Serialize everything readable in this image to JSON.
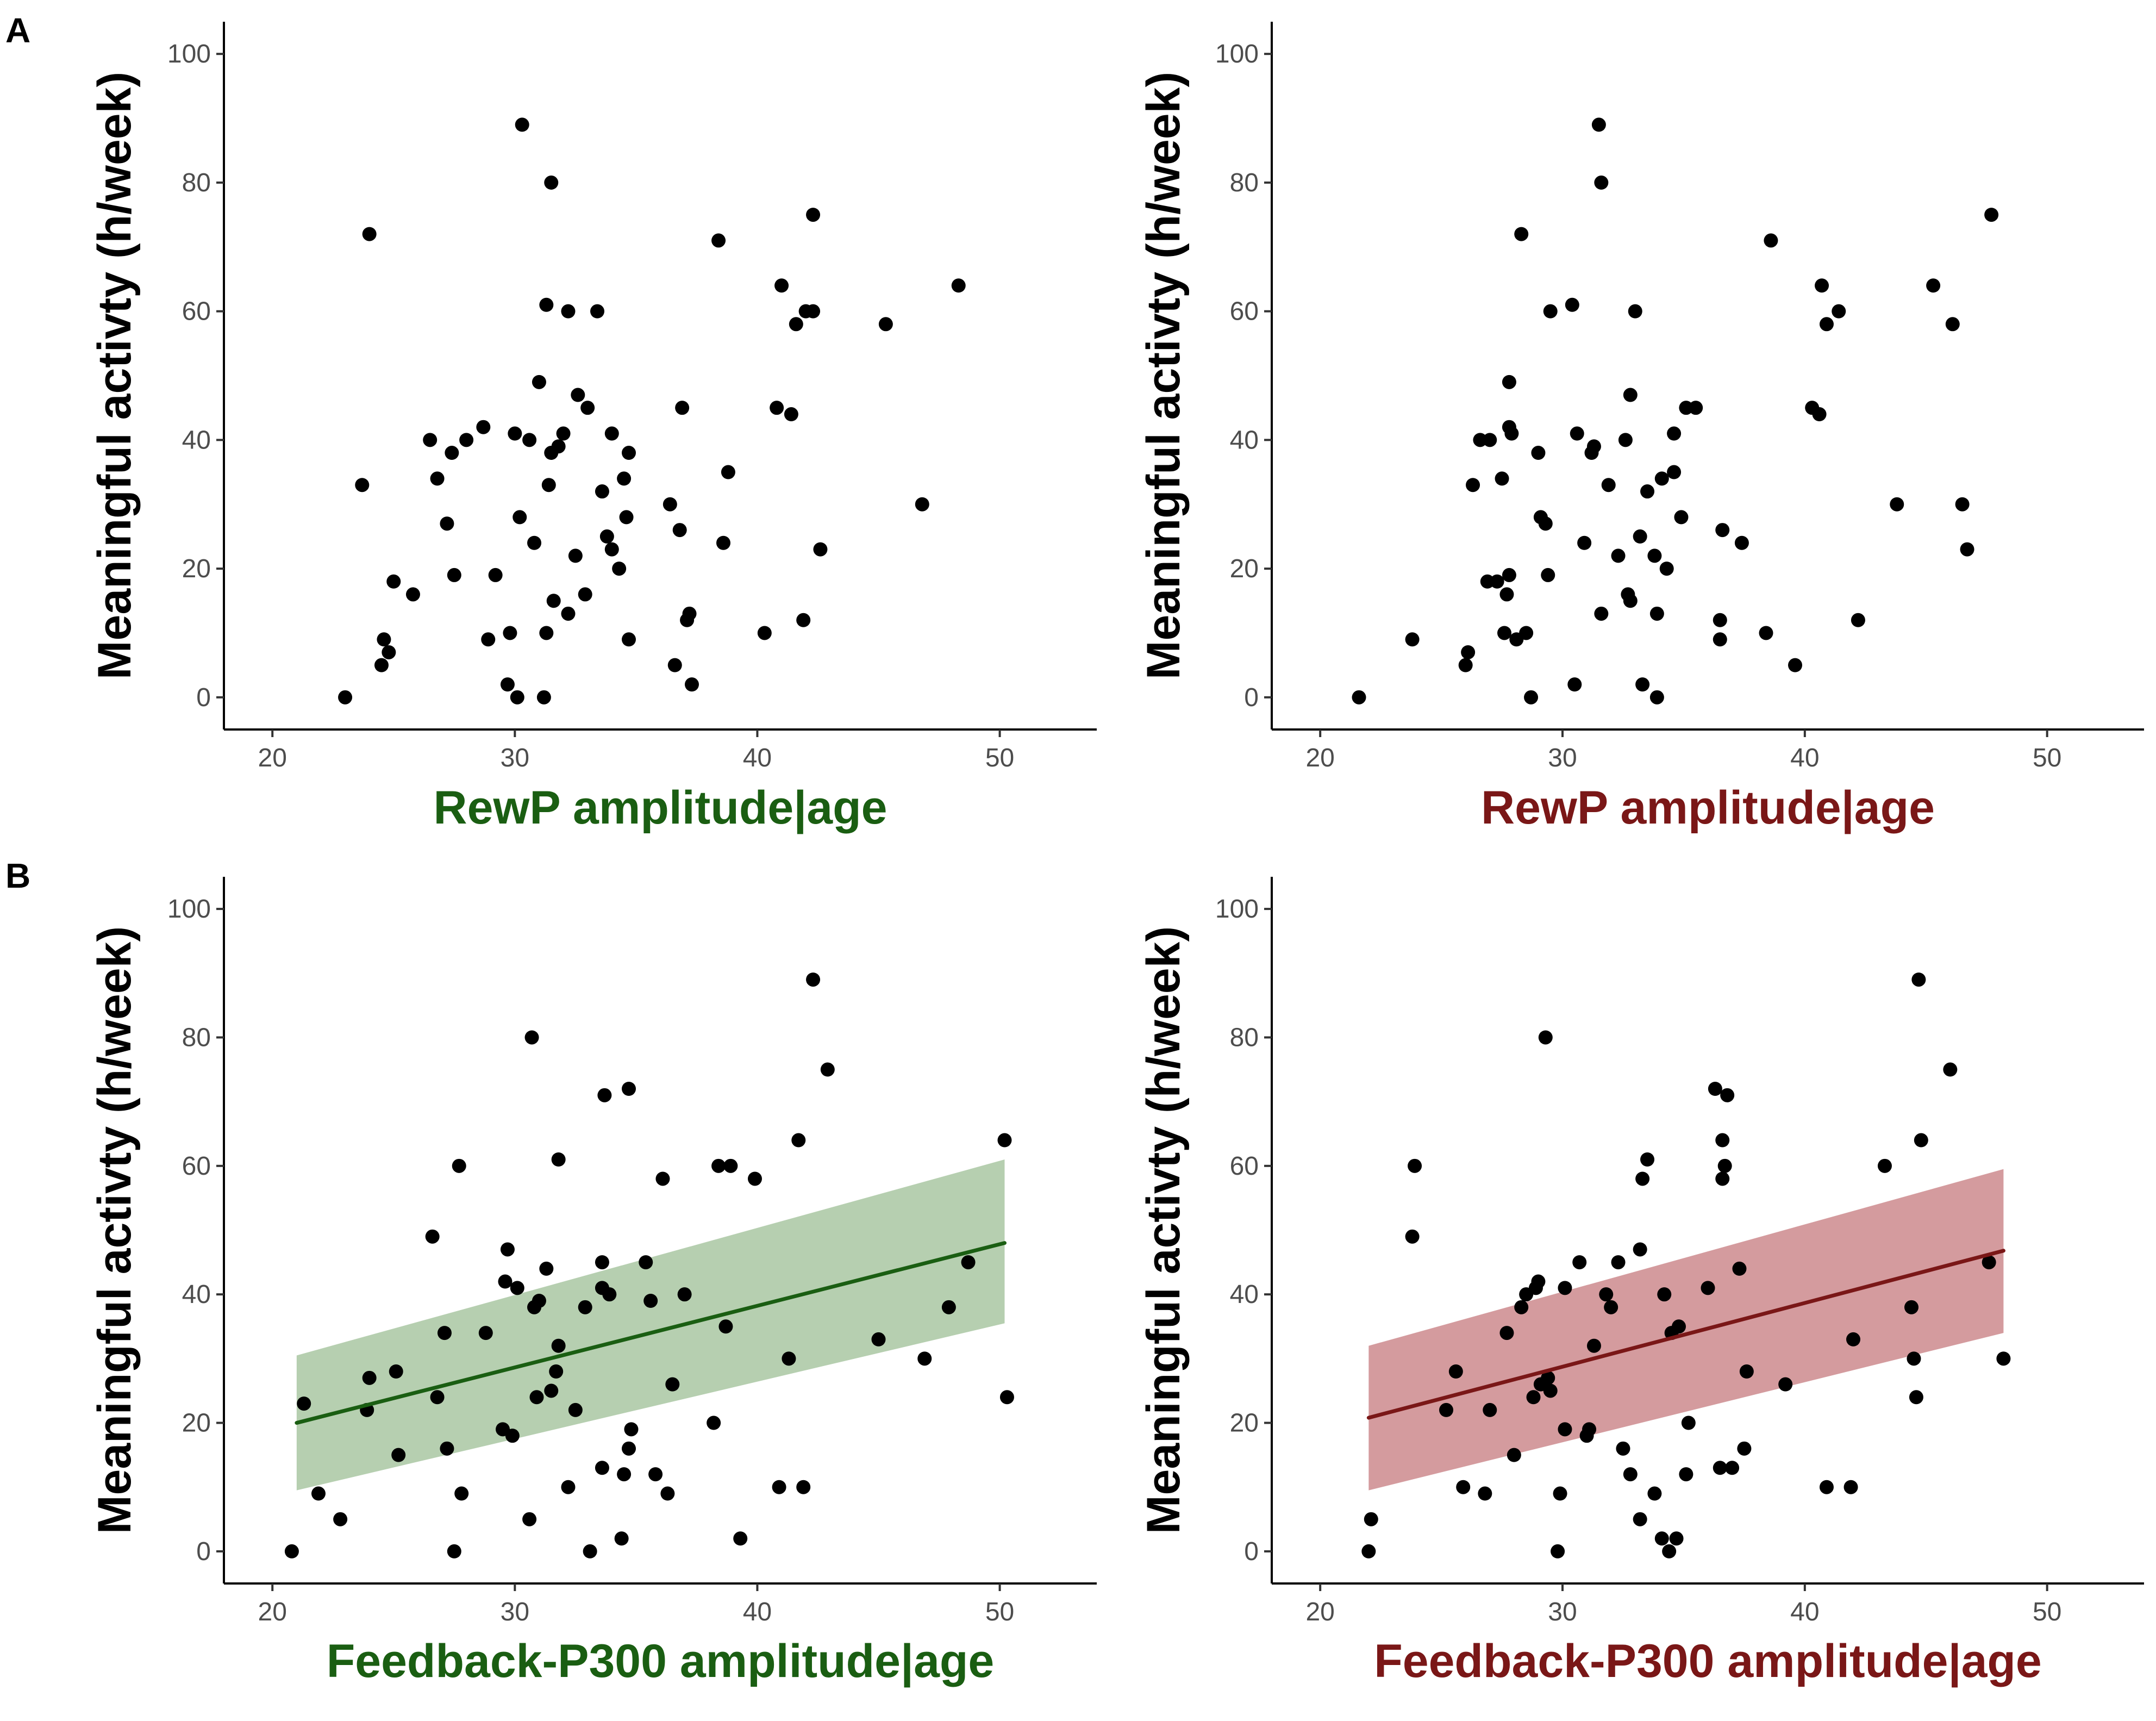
{
  "panel_labels": [
    "A",
    "B"
  ],
  "colors": {
    "green": "#1a5e12",
    "red": "#7a1717",
    "green_band": "#9dbf95",
    "red_band": "#c57a7e",
    "point": "#000000"
  },
  "chart_data": [
    {
      "type": "scatter",
      "panel": "A",
      "position": "top-left",
      "color": "green",
      "xlabel": "RewP amplitude|age",
      "ylabel": "Meaningful activty (h/week)",
      "xlim": [
        18,
        54
      ],
      "ylim": [
        -5,
        105
      ],
      "xticks": [
        20,
        30,
        40,
        50
      ],
      "yticks": [
        0,
        20,
        40,
        60,
        80,
        100
      ],
      "fit": null,
      "points": [
        [
          23,
          0
        ],
        [
          23.7,
          33
        ],
        [
          24,
          72
        ],
        [
          24.5,
          5
        ],
        [
          24.6,
          9
        ],
        [
          24.8,
          7
        ],
        [
          25,
          18
        ],
        [
          25.8,
          16
        ],
        [
          26.5,
          40
        ],
        [
          26.8,
          34
        ],
        [
          27.2,
          27
        ],
        [
          27.4,
          38
        ],
        [
          27.5,
          19
        ],
        [
          28,
          40
        ],
        [
          28.7,
          42
        ],
        [
          28.9,
          9
        ],
        [
          29.2,
          19
        ],
        [
          29.7,
          2
        ],
        [
          29.8,
          10
        ],
        [
          30,
          41
        ],
        [
          30.1,
          0
        ],
        [
          30.2,
          28
        ],
        [
          30.3,
          89
        ],
        [
          30.6,
          40
        ],
        [
          30.8,
          24
        ],
        [
          31,
          49
        ],
        [
          31.2,
          0
        ],
        [
          31.3,
          10
        ],
        [
          31.3,
          61
        ],
        [
          31.4,
          33
        ],
        [
          31.5,
          38
        ],
        [
          31.5,
          80
        ],
        [
          31.6,
          15
        ],
        [
          31.8,
          39
        ],
        [
          32,
          41
        ],
        [
          32.2,
          13
        ],
        [
          32.2,
          60
        ],
        [
          32.5,
          22
        ],
        [
          32.6,
          47
        ],
        [
          32.9,
          16
        ],
        [
          33,
          45
        ],
        [
          33.4,
          60
        ],
        [
          33.6,
          32
        ],
        [
          33.8,
          25
        ],
        [
          34,
          41
        ],
        [
          34,
          23
        ],
        [
          34.3,
          20
        ],
        [
          34.5,
          34
        ],
        [
          34.6,
          28
        ],
        [
          34.7,
          38
        ],
        [
          34.7,
          9
        ],
        [
          36.4,
          30
        ],
        [
          36.6,
          5
        ],
        [
          36.8,
          26
        ],
        [
          36.9,
          45
        ],
        [
          37.1,
          12
        ],
        [
          37.2,
          13
        ],
        [
          37.3,
          2
        ],
        [
          38.4,
          71
        ],
        [
          38.6,
          24
        ],
        [
          38.8,
          35
        ],
        [
          40.3,
          10
        ],
        [
          40.8,
          45
        ],
        [
          41,
          64
        ],
        [
          41.4,
          44
        ],
        [
          41.6,
          58
        ],
        [
          41.9,
          12
        ],
        [
          42,
          60
        ],
        [
          42.3,
          60
        ],
        [
          42.3,
          75
        ],
        [
          42.6,
          23
        ],
        [
          45.3,
          58
        ],
        [
          46.8,
          30
        ],
        [
          48.3,
          64
        ]
      ]
    },
    {
      "type": "scatter",
      "panel": "A",
      "position": "top-right",
      "color": "red",
      "xlabel": "RewP amplitude|age",
      "ylabel": "Meaningful activty (h/week)",
      "xlim": [
        18,
        54
      ],
      "ylim": [
        -5,
        105
      ],
      "xticks": [
        20,
        30,
        40,
        50
      ],
      "yticks": [
        0,
        20,
        40,
        60,
        80,
        100
      ],
      "fit": null,
      "points": [
        [
          21.6,
          0
        ],
        [
          23.8,
          9
        ],
        [
          26,
          5
        ],
        [
          26.1,
          7
        ],
        [
          26.3,
          33
        ],
        [
          26.6,
          40
        ],
        [
          26.9,
          18
        ],
        [
          27,
          40
        ],
        [
          27.3,
          18
        ],
        [
          27.5,
          34
        ],
        [
          27.6,
          10
        ],
        [
          27.7,
          16
        ],
        [
          27.8,
          42
        ],
        [
          27.8,
          49
        ],
        [
          27.8,
          19
        ],
        [
          27.9,
          41
        ],
        [
          28.1,
          9
        ],
        [
          28.3,
          72
        ],
        [
          28.5,
          10
        ],
        [
          28.7,
          0
        ],
        [
          29,
          38
        ],
        [
          29.1,
          28
        ],
        [
          29.3,
          27
        ],
        [
          29.4,
          19
        ],
        [
          29.5,
          60
        ],
        [
          30.4,
          61
        ],
        [
          30.5,
          2
        ],
        [
          30.6,
          41
        ],
        [
          30.9,
          24
        ],
        [
          31.2,
          38
        ],
        [
          31.3,
          39
        ],
        [
          31.5,
          89
        ],
        [
          31.6,
          80
        ],
        [
          31.6,
          13
        ],
        [
          31.9,
          33
        ],
        [
          32.3,
          22
        ],
        [
          32.6,
          40
        ],
        [
          32.7,
          16
        ],
        [
          32.8,
          47
        ],
        [
          32.8,
          15
        ],
        [
          33,
          60
        ],
        [
          33.2,
          25
        ],
        [
          33.3,
          2
        ],
        [
          33.5,
          32
        ],
        [
          33.8,
          22
        ],
        [
          33.9,
          13
        ],
        [
          33.9,
          0
        ],
        [
          34.1,
          34
        ],
        [
          34.3,
          20
        ],
        [
          34.6,
          35
        ],
        [
          34.6,
          41
        ],
        [
          34.9,
          28
        ],
        [
          35.1,
          45
        ],
        [
          35.5,
          45
        ],
        [
          36.5,
          12
        ],
        [
          36.5,
          9
        ],
        [
          36.6,
          26
        ],
        [
          37.4,
          24
        ],
        [
          38.4,
          10
        ],
        [
          38.6,
          71
        ],
        [
          39.6,
          5
        ],
        [
          40.3,
          45
        ],
        [
          40.6,
          44
        ],
        [
          40.7,
          64
        ],
        [
          40.9,
          58
        ],
        [
          41.4,
          60
        ],
        [
          42.2,
          12
        ],
        [
          43.8,
          30
        ],
        [
          45.3,
          64
        ],
        [
          46.1,
          58
        ],
        [
          46.5,
          30
        ],
        [
          46.7,
          23
        ],
        [
          47.7,
          75
        ]
      ]
    },
    {
      "type": "scatter",
      "panel": "B",
      "position": "bottom-left",
      "color": "green",
      "xlabel": "Feedback-P300 amplitude|age",
      "ylabel": "Meaningful activty (h/week)",
      "xlim": [
        18,
        54
      ],
      "ylim": [
        -5,
        105
      ],
      "xticks": [
        20,
        30,
        40,
        50
      ],
      "yticks": [
        0,
        20,
        40,
        60,
        80,
        100
      ],
      "fit": {
        "x": [
          21,
          50.2
        ],
        "y": [
          20,
          48
        ],
        "band_low": [
          9.5,
          35.5
        ],
        "band_high": [
          30.5,
          61
        ]
      },
      "points": [
        [
          20.8,
          0
        ],
        [
          21.3,
          23
        ],
        [
          21.9,
          9
        ],
        [
          22.8,
          5
        ],
        [
          23.9,
          22
        ],
        [
          24,
          27
        ],
        [
          25.1,
          28
        ],
        [
          25.2,
          15
        ],
        [
          26.6,
          49
        ],
        [
          26.8,
          24
        ],
        [
          27.1,
          34
        ],
        [
          27.2,
          16
        ],
        [
          27.5,
          0
        ],
        [
          27.7,
          60
        ],
        [
          27.8,
          9
        ],
        [
          28.8,
          34
        ],
        [
          29.5,
          19
        ],
        [
          29.6,
          42
        ],
        [
          29.7,
          47
        ],
        [
          29.9,
          18
        ],
        [
          30.1,
          41
        ],
        [
          30.6,
          5
        ],
        [
          30.7,
          80
        ],
        [
          30.8,
          38
        ],
        [
          30.9,
          24
        ],
        [
          31,
          39
        ],
        [
          31.3,
          44
        ],
        [
          31.5,
          25
        ],
        [
          31.7,
          28
        ],
        [
          31.8,
          61
        ],
        [
          31.8,
          32
        ],
        [
          32.2,
          10
        ],
        [
          32.5,
          22
        ],
        [
          32.9,
          38
        ],
        [
          33.1,
          0
        ],
        [
          33.6,
          13
        ],
        [
          33.6,
          45
        ],
        [
          33.6,
          41
        ],
        [
          33.7,
          71
        ],
        [
          33.9,
          40
        ],
        [
          34.4,
          2
        ],
        [
          34.5,
          12
        ],
        [
          34.7,
          72
        ],
        [
          34.7,
          16
        ],
        [
          34.8,
          19
        ],
        [
          35.4,
          45
        ],
        [
          35.6,
          39
        ],
        [
          35.8,
          12
        ],
        [
          36.1,
          58
        ],
        [
          36.3,
          9
        ],
        [
          36.5,
          26
        ],
        [
          37,
          40
        ],
        [
          38.2,
          20
        ],
        [
          38.4,
          60
        ],
        [
          38.7,
          35
        ],
        [
          38.9,
          60
        ],
        [
          39.3,
          2
        ],
        [
          39.9,
          58
        ],
        [
          40.9,
          10
        ],
        [
          41.3,
          30
        ],
        [
          41.7,
          64
        ],
        [
          41.9,
          10
        ],
        [
          42.3,
          89
        ],
        [
          42.9,
          75
        ],
        [
          45,
          33
        ],
        [
          46.9,
          30
        ],
        [
          47.9,
          38
        ],
        [
          48.7,
          45
        ],
        [
          50.2,
          64
        ],
        [
          50.3,
          24
        ]
      ]
    },
    {
      "type": "scatter",
      "panel": "B",
      "position": "bottom-right",
      "color": "red",
      "xlabel": "Feedback-P300 amplitude|age",
      "ylabel": "Meaningful activty (h/week)",
      "xlim": [
        18,
        54
      ],
      "ylim": [
        -5,
        105
      ],
      "xticks": [
        20,
        30,
        40,
        50
      ],
      "yticks": [
        0,
        20,
        40,
        60,
        80,
        100
      ],
      "fit": {
        "x": [
          22,
          48.2
        ],
        "y": [
          20.8,
          46.8
        ],
        "band_low": [
          9.5,
          34
        ],
        "band_high": [
          32,
          59.5
        ]
      },
      "points": [
        [
          22,
          0
        ],
        [
          22.1,
          5
        ],
        [
          23.8,
          49
        ],
        [
          23.9,
          60
        ],
        [
          25.2,
          22
        ],
        [
          25.6,
          28
        ],
        [
          25.9,
          10
        ],
        [
          26.8,
          9
        ],
        [
          27,
          22
        ],
        [
          27.7,
          34
        ],
        [
          28,
          15
        ],
        [
          28.3,
          38
        ],
        [
          28.5,
          40
        ],
        [
          28.8,
          24
        ],
        [
          28.9,
          41
        ],
        [
          29,
          42
        ],
        [
          29.1,
          26
        ],
        [
          29.3,
          80
        ],
        [
          29.4,
          27
        ],
        [
          29.5,
          25
        ],
        [
          29.8,
          0
        ],
        [
          29.9,
          9
        ],
        [
          30.1,
          19
        ],
        [
          30.1,
          41
        ],
        [
          30.7,
          45
        ],
        [
          31,
          18
        ],
        [
          31.1,
          19
        ],
        [
          31.3,
          32
        ],
        [
          31.8,
          40
        ],
        [
          32,
          38
        ],
        [
          32.3,
          45
        ],
        [
          32.5,
          16
        ],
        [
          32.8,
          12
        ],
        [
          33.2,
          47
        ],
        [
          33.2,
          5
        ],
        [
          33.3,
          58
        ],
        [
          33.5,
          61
        ],
        [
          33.8,
          9
        ],
        [
          34.1,
          2
        ],
        [
          34.2,
          40
        ],
        [
          34.4,
          0
        ],
        [
          34.5,
          34
        ],
        [
          34.7,
          2
        ],
        [
          34.8,
          35
        ],
        [
          35.1,
          12
        ],
        [
          35.2,
          20
        ],
        [
          36,
          41
        ],
        [
          36.3,
          72
        ],
        [
          36.5,
          13
        ],
        [
          36.6,
          64
        ],
        [
          36.6,
          58
        ],
        [
          36.7,
          60
        ],
        [
          36.8,
          71
        ],
        [
          37,
          13
        ],
        [
          37.3,
          44
        ],
        [
          37.5,
          16
        ],
        [
          37.6,
          28
        ],
        [
          39.2,
          26
        ],
        [
          40.9,
          10
        ],
        [
          41.9,
          10
        ],
        [
          42,
          33
        ],
        [
          43.3,
          60
        ],
        [
          44.4,
          38
        ],
        [
          44.5,
          30
        ],
        [
          44.6,
          24
        ],
        [
          44.7,
          89
        ],
        [
          44.8,
          64
        ],
        [
          46,
          75
        ],
        [
          47.6,
          45
        ],
        [
          48.2,
          30
        ]
      ]
    }
  ]
}
